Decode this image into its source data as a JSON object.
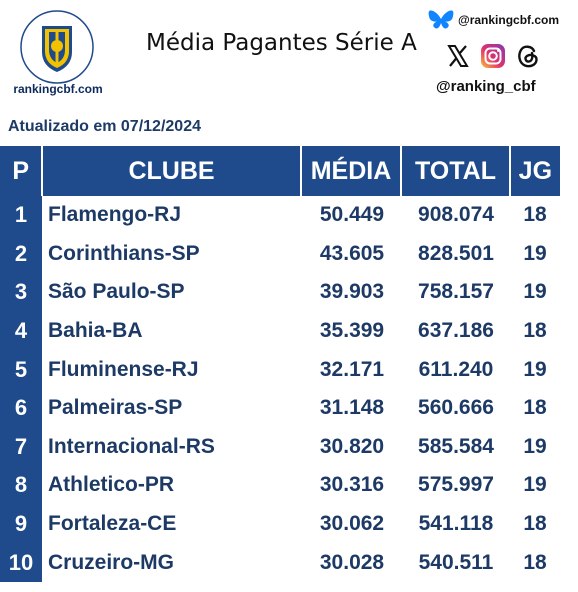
{
  "header": {
    "site": "rankingcbf.com",
    "title": "Média Pagantes Série A",
    "bluesky_handle": "@rankingcbf.com",
    "social_handle": "@ranking_cbf",
    "icons": [
      "cbf-crest-icon",
      "bluesky-icon",
      "x-icon",
      "instagram-icon",
      "threads-icon"
    ]
  },
  "updated": "Atualizado em 07/12/2024",
  "colors": {
    "header_bg": "#1f4b8c",
    "text": "#1d3a66",
    "crest_yellow": "#f2c200"
  },
  "table": {
    "columns": [
      "P",
      "CLUBE",
      "MÉDIA",
      "TOTAL",
      "JG"
    ],
    "rows": [
      {
        "pos": "1",
        "club": "Flamengo-RJ",
        "media": "50.449",
        "total": "908.074",
        "jg": "18"
      },
      {
        "pos": "2",
        "club": "Corinthians-SP",
        "media": "43.605",
        "total": "828.501",
        "jg": "19"
      },
      {
        "pos": "3",
        "club": "São Paulo-SP",
        "media": "39.903",
        "total": "758.157",
        "jg": "19"
      },
      {
        "pos": "4",
        "club": "Bahia-BA",
        "media": "35.399",
        "total": "637.186",
        "jg": "18"
      },
      {
        "pos": "5",
        "club": "Fluminense-RJ",
        "media": "32.171",
        "total": "611.240",
        "jg": "19"
      },
      {
        "pos": "6",
        "club": "Palmeiras-SP",
        "media": "31.148",
        "total": "560.666",
        "jg": "18"
      },
      {
        "pos": "7",
        "club": "Internacional-RS",
        "media": "30.820",
        "total": "585.584",
        "jg": "19"
      },
      {
        "pos": "8",
        "club": "Athletico-PR",
        "media": "30.316",
        "total": "575.997",
        "jg": "19"
      },
      {
        "pos": "9",
        "club": "Fortaleza-CE",
        "media": "30.062",
        "total": "541.118",
        "jg": "18"
      },
      {
        "pos": "10",
        "club": "Cruzeiro-MG",
        "media": "30.028",
        "total": "540.511",
        "jg": "18"
      }
    ]
  }
}
